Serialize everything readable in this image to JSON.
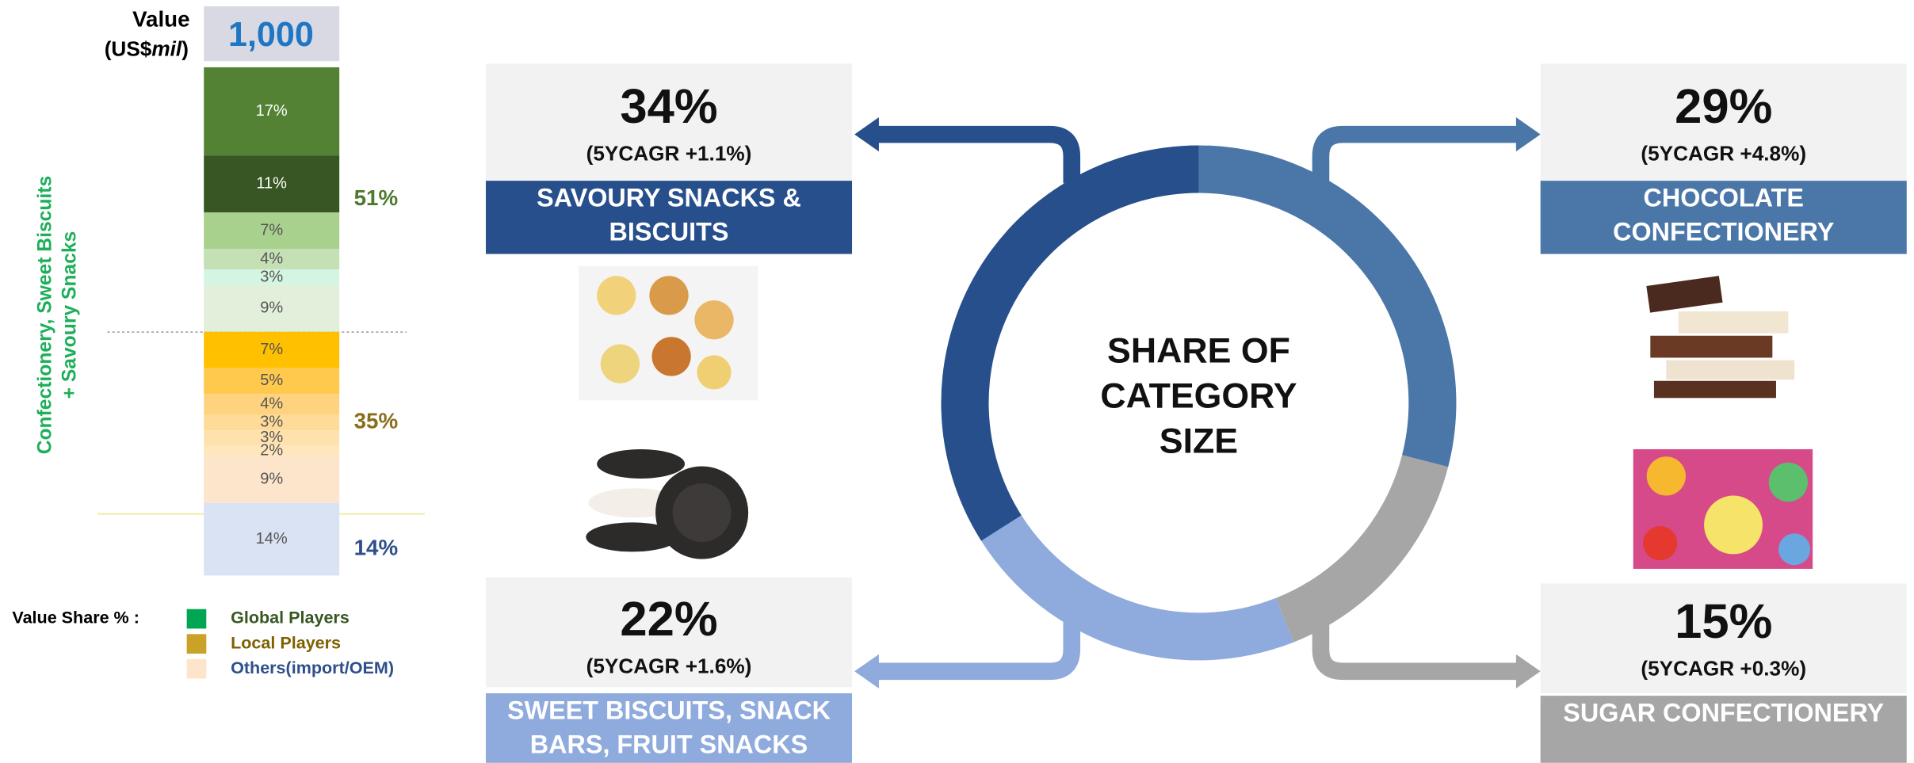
{
  "chart_data": [
    {
      "type": "stacked_bar",
      "value_header": "Value",
      "unit_prefix": "(US$",
      "unit_emphasis": "mil",
      "unit_suffix": ")",
      "total": 1000,
      "total_label": "1,000",
      "side_label": "Confectionery, Sweet Biscuits + Savoury Snacks",
      "values": [
        17,
        11,
        7,
        4,
        3,
        9,
        7,
        5,
        4,
        3,
        3,
        2,
        9,
        14
      ],
      "value_labels": [
        "17%",
        "11%",
        "7%",
        "4%",
        "3%",
        "9%",
        "7%",
        "5%",
        "4%",
        "3%",
        "3%",
        "2%",
        "9%",
        "14%"
      ],
      "colors": [
        "#548235",
        "#375623",
        "#a9d18e",
        "#c5e0b4",
        "#d5f5e3",
        "#e2efda",
        "#ffc000",
        "#ffc94d",
        "#ffd27f",
        "#ffdb99",
        "#ffe1ad",
        "#ffe6bd",
        "#fde5cc",
        "#dae3f3"
      ],
      "ylim": [
        0,
        100
      ],
      "group_values": [
        51,
        35,
        14
      ],
      "group_labels": [
        "51%",
        "35%",
        "14%"
      ],
      "group_colors": [
        "#4d7a2d",
        "#8a6d1a",
        "#2e4f8a"
      ],
      "legend_title": "Value Share % :",
      "legend": [
        {
          "name": "Global Players",
          "color": "#00a651",
          "text_color": "#385723"
        },
        {
          "name": "Local Players",
          "color": "#c9a227",
          "text_color": "#7f6000"
        },
        {
          "name": "Others(import/OEM)",
          "color": "#fde5cc",
          "text_color": "#2e4f8a"
        }
      ]
    },
    {
      "type": "donut",
      "title": "SHARE OF CATEGORY SIZE",
      "categories": [
        "CHOCOLATE CONFECTIONERY",
        "SUGAR CONFECTIONERY",
        "SWEET BISCUITS, SNACK BARS, FRUIT SNACKS",
        "SAVOURY SNACKS & BISCUITS"
      ],
      "values": [
        29,
        15,
        22,
        34
      ],
      "value_labels": [
        "29%",
        "15%",
        "22%",
        "34%"
      ],
      "growth_labels": [
        "(5YCAGR +4.8%)",
        "(5YCAGR +0.3%)",
        "(5YCAGR +1.6%)",
        "(5YCAGR +1.1%)"
      ],
      "colors": [
        "#4a76a8",
        "#a6a6a6",
        "#8faadc",
        "#264f8c"
      ]
    }
  ]
}
